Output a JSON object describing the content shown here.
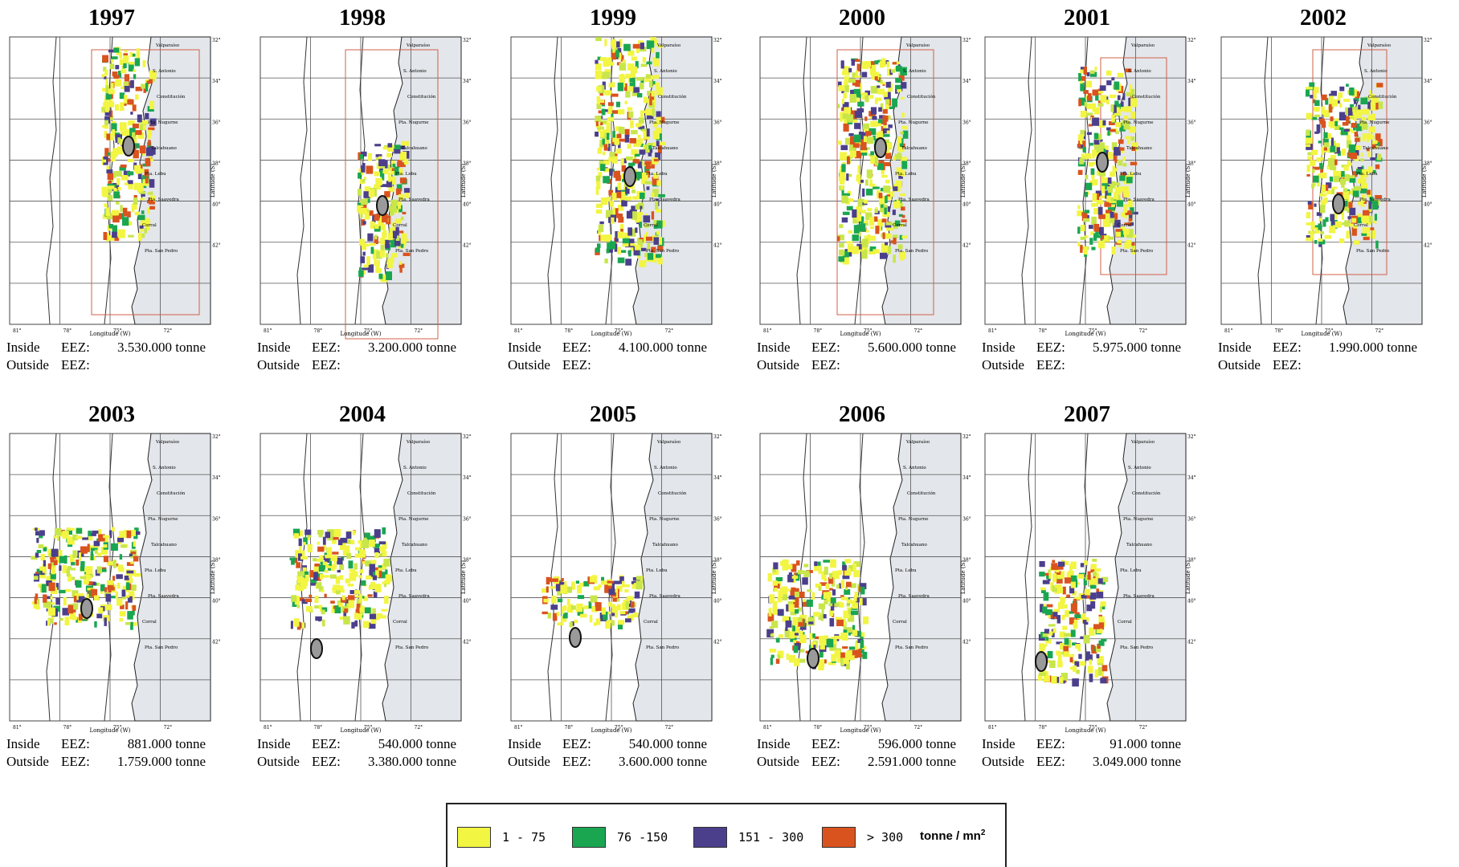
{
  "panels": [
    {
      "year": "1997",
      "inside_label": "Inside",
      "outside_label": "Outside",
      "eez": "EEZ:",
      "inside_value": "3.530.000 tonne",
      "outside_value": ""
    },
    {
      "year": "1998",
      "inside_label": "Inside",
      "outside_label": "Outside",
      "eez": "EEZ:",
      "inside_value": "3.200.000 tonne",
      "outside_value": ""
    },
    {
      "year": "1999",
      "inside_label": "Inside",
      "outside_label": "Outside",
      "eez": "EEZ:",
      "inside_value": "4.100.000 tonne",
      "outside_value": ""
    },
    {
      "year": "2000",
      "inside_label": "Inside",
      "outside_label": "Outside",
      "eez": "EEZ:",
      "inside_value": "5.600.000 tonne",
      "outside_value": ""
    },
    {
      "year": "2001",
      "inside_label": "Inside",
      "outside_label": "Outside",
      "eez": "EEZ:",
      "inside_value": "5.975.000 tonne",
      "outside_value": ""
    },
    {
      "year": "2002",
      "inside_label": "Inside",
      "outside_label": "Outside",
      "eez": "EEZ:",
      "inside_value": "1.990.000 tonne",
      "outside_value": ""
    },
    {
      "year": "2003",
      "inside_label": "Inside",
      "outside_label": "Outside",
      "eez": "EEZ:",
      "inside_value": "881.000 tonne",
      "outside_value": "1.759.000 tonne"
    },
    {
      "year": "2004",
      "inside_label": "Inside",
      "outside_label": "Outside",
      "eez": "EEZ:",
      "inside_value": "540.000 tonne",
      "outside_value": "3.380.000 tonne"
    },
    {
      "year": "2005",
      "inside_label": "Inside",
      "outside_label": "Outside",
      "eez": "EEZ:",
      "inside_value": "540.000 tonne",
      "outside_value": "3.600.000 tonne"
    },
    {
      "year": "2006",
      "inside_label": "Inside",
      "outside_label": "Outside",
      "eez": "EEZ:",
      "inside_value": "596.000 tonne",
      "outside_value": "2.591.000 tonne"
    },
    {
      "year": "2007",
      "inside_label": "Inside",
      "outside_label": "Outside",
      "eez": "EEZ:",
      "inside_value": "91.000 tonne",
      "outside_value": "3.049.000 tonne"
    }
  ],
  "map": {
    "x_axis_label": "Longitude (W)",
    "y_axis_label": "Latitude (S)",
    "lon_ticks": [
      "81°",
      "78°",
      "75°",
      "72°"
    ],
    "lat_ticks": [
      "32°",
      "34°",
      "36°",
      "38°",
      "40°",
      "42°"
    ],
    "places": [
      "Valparaíso",
      "S. Antonio",
      "Constitución",
      "Pta. Nugurne",
      "Talcahuano",
      "Pta. Lebu",
      "Pta. Saavedra",
      "Corral",
      "Pta. San Pedro"
    ]
  },
  "legend": {
    "items": [
      {
        "label": "1 - 75",
        "color": "#f2f542"
      },
      {
        "label": "76 -150",
        "color": "#1aa651"
      },
      {
        "label": "151 - 300",
        "color": "#4b3f8c"
      },
      {
        "label": "> 300",
        "color": "#d9531e"
      }
    ],
    "unit_text": "tonne / mn",
    "unit_sup": "2"
  }
}
